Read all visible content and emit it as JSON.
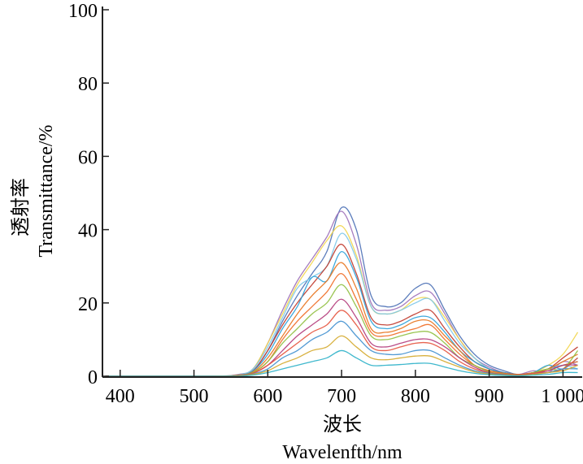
{
  "chart_data": {
    "type": "line",
    "title": "",
    "xlabel_cn": "波长",
    "xlabel": "Wavelenfth/nm",
    "ylabel_cn": "透射率",
    "ylabel": "Transmittance/%",
    "xlim": [
      376,
      1026
    ],
    "ylim": [
      0,
      100
    ],
    "xticks": [
      400,
      500,
      600,
      700,
      800,
      900,
      1000
    ],
    "xtick_labels": [
      "400",
      "500",
      "600",
      "700",
      "800",
      "900",
      "1 000"
    ],
    "yticks": [
      0,
      20,
      40,
      60,
      80,
      100
    ],
    "ytick_labels": [
      "0",
      "20",
      "40",
      "60",
      "80",
      "100"
    ],
    "grid": false,
    "x": [
      380,
      520,
      560,
      580,
      600,
      620,
      640,
      660,
      680,
      700,
      720,
      740,
      760,
      780,
      800,
      820,
      840,
      860,
      880,
      900,
      920,
      940,
      960,
      980,
      1000,
      1020
    ],
    "series": [
      {
        "name": "s1",
        "color": "#4a6fb5",
        "values": [
          0,
          0,
          0.3,
          1.5,
          7,
          15,
          22,
          28,
          34,
          46,
          40,
          22,
          19,
          20,
          24,
          25,
          18,
          11,
          6,
          3,
          1.5,
          0.4,
          1,
          2,
          3,
          4
        ]
      },
      {
        "name": "s2",
        "color": "#9c6fb8",
        "values": [
          0,
          0,
          0.5,
          2,
          9,
          18,
          26,
          32,
          38,
          45,
          36,
          20,
          18,
          19,
          22,
          23,
          17,
          10,
          5,
          2.5,
          1,
          0.5,
          1.5,
          1,
          4,
          3
        ]
      },
      {
        "name": "s3",
        "color": "#f2d54a",
        "values": [
          0,
          0,
          0.4,
          2,
          9,
          17,
          25,
          31,
          37,
          41,
          33,
          19,
          17,
          18,
          21,
          21,
          16,
          10,
          5,
          2,
          1,
          0.5,
          1,
          3,
          6,
          12
        ]
      },
      {
        "name": "s4",
        "color": "#7cc6e8",
        "values": [
          0,
          0,
          0.4,
          2,
          8,
          16,
          24,
          27,
          30,
          39,
          32,
          19,
          17,
          18,
          20,
          21,
          15,
          9,
          5,
          2,
          1,
          0.5,
          1,
          2,
          3,
          2
        ]
      },
      {
        "name": "s5",
        "color": "#c0392b",
        "values": [
          0,
          0,
          0.3,
          1.5,
          7,
          14,
          20,
          25,
          30,
          36,
          28,
          16,
          14,
          15,
          17,
          18,
          13,
          8,
          4,
          2,
          1,
          0.5,
          1,
          2,
          5,
          8
        ]
      },
      {
        "name": "s6",
        "color": "#2aa0d8",
        "values": [
          0,
          0,
          0.2,
          1.5,
          6,
          13,
          19,
          27,
          26,
          34,
          27,
          15,
          13,
          14,
          16,
          16,
          12,
          7,
          4,
          2,
          1,
          0.4,
          1,
          3,
          2,
          5
        ]
      },
      {
        "name": "s7",
        "color": "#e8731c",
        "values": [
          0,
          0,
          0.2,
          1.2,
          5,
          11,
          17,
          22,
          26,
          31,
          24,
          13,
          12,
          13,
          15,
          15,
          11,
          7,
          3,
          1.5,
          0.8,
          0.4,
          1,
          2,
          4,
          6
        ]
      },
      {
        "name": "s8",
        "color": "#ef6a22",
        "values": [
          0,
          0,
          0.2,
          1,
          4,
          10,
          15,
          19,
          23,
          28,
          21,
          12,
          11,
          12,
          13,
          14,
          10,
          6,
          3,
          1.5,
          0.8,
          0.4,
          1,
          1.5,
          3,
          4
        ]
      },
      {
        "name": "s9",
        "color": "#8fbf3f",
        "values": [
          0,
          0,
          0.1,
          1,
          4,
          9,
          13,
          17,
          20,
          25,
          19,
          11,
          10,
          11,
          12,
          12,
          9,
          5,
          3,
          1.2,
          0.6,
          0.3,
          1,
          2,
          2,
          7
        ]
      },
      {
        "name": "s10",
        "color": "#b33a7a",
        "values": [
          0,
          0,
          0.1,
          0.8,
          3,
          7,
          11,
          14,
          17,
          21,
          16,
          9,
          8,
          9,
          10,
          10,
          8,
          5,
          2.5,
          1,
          0.5,
          0.3,
          0.8,
          1.5,
          3,
          3
        ]
      },
      {
        "name": "s11",
        "color": "#e5533d",
        "values": [
          0,
          0,
          0.1,
          0.8,
          3,
          6,
          9,
          12,
          14,
          18,
          14,
          8,
          7,
          8,
          9,
          9,
          7,
          4,
          2,
          1,
          0.5,
          0.3,
          0.8,
          1,
          2,
          5
        ]
      },
      {
        "name": "s12",
        "color": "#3f8fcf",
        "values": [
          0,
          0,
          0.1,
          0.6,
          2,
          5,
          7,
          10,
          12,
          15,
          11,
          7,
          6,
          6,
          7,
          7,
          5,
          3,
          1.5,
          0.8,
          0.4,
          0.2,
          0.5,
          1,
          2,
          2
        ]
      },
      {
        "name": "s13",
        "color": "#d4a82a",
        "values": [
          0,
          0,
          0.1,
          0.5,
          1.5,
          3.5,
          5,
          7,
          8,
          11,
          8,
          5,
          4.5,
          5,
          5.5,
          5.5,
          4,
          2.5,
          1.2,
          0.6,
          0.3,
          0.2,
          0.5,
          1,
          1.5,
          3
        ]
      },
      {
        "name": "s14",
        "color": "#2ab0c8",
        "values": [
          0,
          0,
          0,
          0.3,
          1,
          2,
          3,
          4,
          5,
          7,
          5,
          3,
          3,
          3.2,
          3.5,
          3.5,
          2.5,
          1.5,
          0.8,
          0.4,
          0.2,
          0.1,
          0.3,
          0.5,
          1,
          1
        ]
      }
    ]
  }
}
